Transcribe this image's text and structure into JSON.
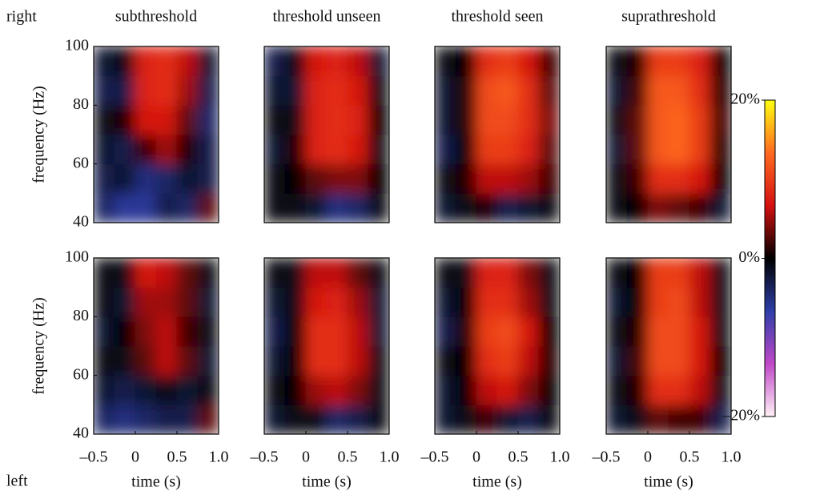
{
  "row_labels": [
    "right",
    "left"
  ],
  "colorbar": {
    "ylim": [
      -20,
      20
    ],
    "yticks": [
      {
        "value": 20,
        "label": "20%"
      },
      {
        "value": 0,
        "label": "0%"
      },
      {
        "value": -20,
        "label": "–20%"
      }
    ],
    "colors": [
      "#fff0f6",
      "#c048c8",
      "#2e3ea8",
      "#000000",
      "#d41010",
      "#ff6a20",
      "#ffff10"
    ]
  },
  "chart_data": [
    {
      "type": "heatmap",
      "title": "subthreshold",
      "ylabel": "frequency (Hz)",
      "xlim": [
        -0.5,
        1
      ],
      "ylim": [
        40,
        100
      ],
      "yticks": [
        40,
        60,
        80,
        100
      ],
      "z": [
        [
          -4,
          -6,
          -6,
          -3,
          -4,
          3
        ],
        [
          -3,
          -2,
          -5,
          -4,
          -2,
          -3
        ],
        [
          -2,
          -3,
          2,
          5,
          1,
          -3
        ],
        [
          -1,
          1,
          7,
          7,
          3,
          -4
        ],
        [
          -3,
          -3,
          8,
          9,
          5,
          -3
        ],
        [
          -2,
          -1,
          8,
          9,
          6,
          -2
        ]
      ]
    },
    {
      "type": "heatmap",
      "title": "threshold unseen",
      "xlim": [
        -0.5,
        1
      ],
      "ylim": [
        40,
        100
      ],
      "z": [
        [
          -1,
          -1,
          -2,
          -5,
          -4,
          -1
        ],
        [
          -1,
          0,
          3,
          4,
          4,
          0
        ],
        [
          -2,
          1,
          8,
          9,
          7,
          -1
        ],
        [
          -1,
          -1,
          8,
          9,
          8,
          0
        ],
        [
          -2,
          -2,
          8,
          9,
          7,
          -1
        ],
        [
          -3,
          -1,
          7,
          8,
          6,
          -2
        ]
      ]
    },
    {
      "type": "heatmap",
      "title": "threshold seen",
      "xlim": [
        -0.5,
        1
      ],
      "ylim": [
        40,
        100
      ],
      "z": [
        [
          -2,
          -1,
          1,
          -3,
          -2,
          -1
        ],
        [
          -1,
          1,
          6,
          6,
          5,
          2
        ],
        [
          -3,
          0,
          10,
          10,
          8,
          3
        ],
        [
          -2,
          1,
          11,
          11,
          9,
          4
        ],
        [
          -2,
          1,
          11,
          12,
          9,
          3
        ],
        [
          -1,
          0,
          9,
          10,
          7,
          2
        ]
      ]
    },
    {
      "type": "heatmap",
      "title": "suprathreshold",
      "xlim": [
        -0.5,
        1
      ],
      "ylim": [
        40,
        100
      ],
      "z": [
        [
          -1,
          0,
          4,
          3,
          2,
          -2
        ],
        [
          -1,
          2,
          9,
          9,
          7,
          0
        ],
        [
          -2,
          3,
          12,
          13,
          10,
          1
        ],
        [
          -1,
          3,
          12,
          13,
          10,
          2
        ],
        [
          -2,
          2,
          12,
          12,
          9,
          1
        ],
        [
          -1,
          1,
          10,
          10,
          8,
          0
        ]
      ]
    },
    {
      "type": "heatmap",
      "ylabel": "frequency (Hz)",
      "xlabel": "time (s)",
      "xlim": [
        -0.5,
        1
      ],
      "ylim": [
        40,
        100
      ],
      "yticks": [
        40,
        60,
        80,
        100
      ],
      "xticks": [
        {
          "value": -0.5,
          "label": "–0.5"
        },
        0,
        0.5,
        {
          "value": 1,
          "label": "1.0"
        }
      ],
      "z": [
        [
          -4,
          -5,
          -4,
          -3,
          -3,
          3
        ],
        [
          -2,
          -3,
          -2,
          -1,
          -2,
          -1
        ],
        [
          -1,
          -1,
          3,
          6,
          3,
          -2
        ],
        [
          -2,
          0,
          4,
          6,
          2,
          -1
        ],
        [
          -1,
          -2,
          5,
          5,
          3,
          -2
        ],
        [
          -1,
          -1,
          7,
          6,
          3,
          -1
        ]
      ]
    },
    {
      "type": "heatmap",
      "xlabel": "time (s)",
      "xlim": [
        -0.5,
        1
      ],
      "ylim": [
        40,
        100
      ],
      "xticks": [
        {
          "value": -0.5,
          "label": "–0.5"
        },
        0,
        0.5,
        {
          "value": 1,
          "label": "1.0"
        }
      ],
      "z": [
        [
          -2,
          -1,
          -1,
          -4,
          -3,
          -1
        ],
        [
          -1,
          0,
          5,
          6,
          4,
          -1
        ],
        [
          -2,
          0,
          9,
          9,
          6,
          -1
        ],
        [
          -3,
          0,
          9,
          9,
          6,
          -2
        ],
        [
          -2,
          -1,
          7,
          8,
          5,
          -2
        ],
        [
          -1,
          -1,
          6,
          6,
          3,
          -1
        ]
      ]
    },
    {
      "type": "heatmap",
      "xlabel": "time (s)",
      "xlim": [
        -0.5,
        1
      ],
      "ylim": [
        40,
        100
      ],
      "xticks": [
        {
          "value": -0.5,
          "label": "–0.5"
        },
        0,
        0.5,
        {
          "value": 1,
          "label": "1.0"
        }
      ],
      "z": [
        [
          -2,
          -1,
          2,
          -2,
          -3,
          -1
        ],
        [
          -2,
          0,
          6,
          7,
          4,
          0
        ],
        [
          -1,
          0,
          9,
          10,
          6,
          1
        ],
        [
          -3,
          1,
          10,
          11,
          7,
          0
        ],
        [
          -2,
          0,
          9,
          9,
          5,
          -1
        ],
        [
          -1,
          -1,
          8,
          8,
          4,
          -1
        ]
      ]
    },
    {
      "type": "heatmap",
      "xlabel": "time (s)",
      "xlim": [
        -0.5,
        1
      ],
      "ylim": [
        40,
        100
      ],
      "xticks": [
        {
          "value": -0.5,
          "label": "–0.5"
        },
        0,
        0.5,
        {
          "value": 1,
          "label": "1.0"
        }
      ],
      "z": [
        [
          -2,
          -1,
          3,
          2,
          2,
          -3
        ],
        [
          -1,
          1,
          9,
          9,
          6,
          -1
        ],
        [
          -2,
          2,
          11,
          11,
          7,
          0
        ],
        [
          -1,
          1,
          11,
          11,
          7,
          -1
        ],
        [
          -2,
          0,
          10,
          11,
          6,
          -1
        ],
        [
          -1,
          0,
          10,
          10,
          6,
          -1
        ]
      ]
    }
  ]
}
